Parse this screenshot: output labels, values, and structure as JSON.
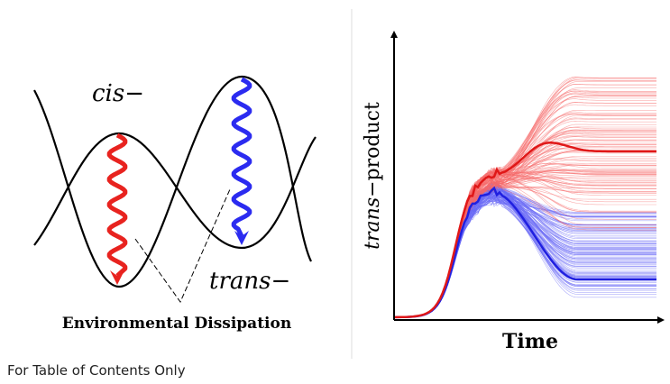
{
  "left_panel": {
    "cis_label": "cis−",
    "trans_label": "trans−",
    "dissipation_label": "Environmental Dissipation"
  },
  "right_panel": {
    "y_axis_label": {
      "italic": "trans",
      "plain": "−product"
    },
    "x_axis_label": "Time"
  },
  "caption": "For Table of Contents Only"
}
